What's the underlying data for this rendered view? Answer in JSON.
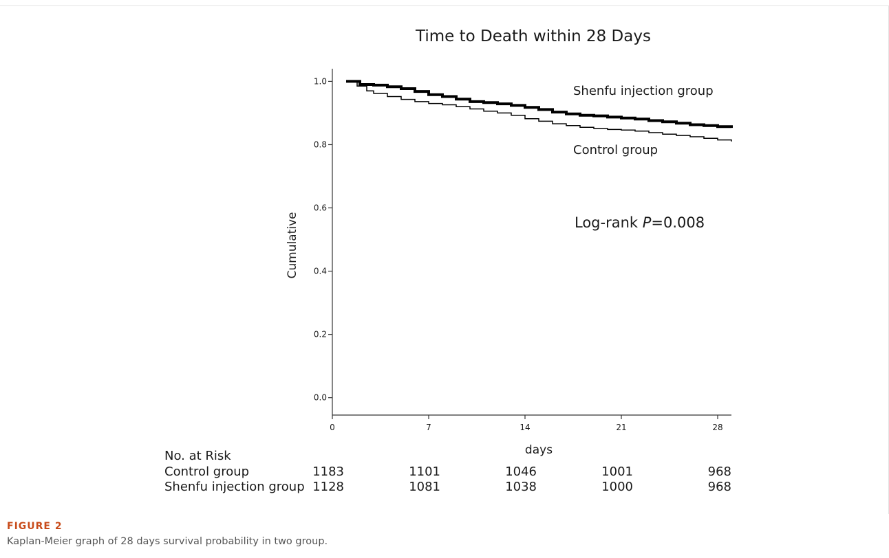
{
  "figure": {
    "label": "FIGURE 2",
    "caption": "Kaplan-Meier graph of 28 days survival probability in two group."
  },
  "chart_data": {
    "type": "line",
    "title": "Time to Death within 28 Days",
    "xlabel": "days",
    "ylabel": "Cumulative",
    "xlim": [
      0,
      29
    ],
    "ylim": [
      -0.055,
      1.04
    ],
    "xticks": [
      0,
      7,
      14,
      21,
      28
    ],
    "yticks": [
      0.0,
      0.2,
      0.4,
      0.6,
      0.8,
      1.0
    ],
    "ytick_labels": [
      "0.0",
      "0.2",
      "0.4",
      "0.6",
      "0.8",
      "1.0"
    ],
    "grid": false,
    "series": [
      {
        "name": "Shenfu injection group",
        "color": "#000000",
        "bold": true,
        "x": [
          1,
          2,
          3,
          4,
          5,
          6,
          7,
          8,
          9,
          10,
          11,
          12,
          13,
          14,
          15,
          16,
          17,
          18,
          19,
          20,
          21,
          22,
          23,
          24,
          25,
          26,
          27,
          28,
          29
        ],
        "y": [
          1.0,
          0.99,
          0.988,
          0.983,
          0.977,
          0.968,
          0.958,
          0.952,
          0.944,
          0.936,
          0.933,
          0.929,
          0.924,
          0.918,
          0.911,
          0.903,
          0.897,
          0.893,
          0.891,
          0.887,
          0.884,
          0.881,
          0.876,
          0.872,
          0.868,
          0.863,
          0.86,
          0.857,
          0.853
        ]
      },
      {
        "name": "Control group",
        "color": "#000000",
        "bold": false,
        "x": [
          1,
          1.8,
          2.5,
          3,
          4,
          5,
          6,
          7,
          8,
          9,
          10,
          11,
          12,
          13,
          14,
          15,
          16,
          17,
          18,
          19,
          20,
          21,
          22,
          23,
          24,
          25,
          26,
          27,
          28,
          29
        ],
        "y": [
          1.0,
          0.985,
          0.97,
          0.962,
          0.952,
          0.943,
          0.936,
          0.93,
          0.926,
          0.92,
          0.913,
          0.906,
          0.9,
          0.893,
          0.882,
          0.874,
          0.866,
          0.86,
          0.855,
          0.851,
          0.848,
          0.846,
          0.843,
          0.838,
          0.833,
          0.829,
          0.825,
          0.82,
          0.815,
          0.81
        ]
      }
    ],
    "annotation": {
      "prefix": "Log-rank ",
      "italic": "P",
      "suffix": "=0.008"
    },
    "risk_table": {
      "header": "No. at Risk",
      "columns": [
        0,
        7,
        14,
        21,
        28
      ],
      "rows": [
        {
          "label": "Control group",
          "values": [
            "1183",
            "1101",
            "1046",
            "1001",
            "968"
          ]
        },
        {
          "label": "Shenfu injection group",
          "values": [
            "1128",
            "1081",
            "1038",
            "1000",
            "968"
          ]
        }
      ]
    }
  }
}
